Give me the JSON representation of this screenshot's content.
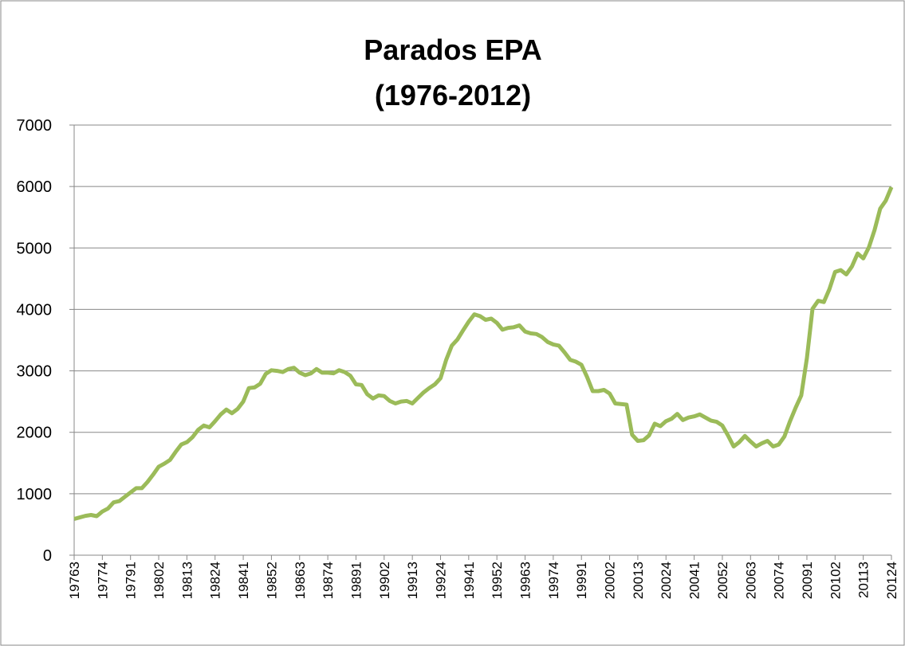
{
  "chart_data": {
    "type": "line",
    "title": [
      "Parados  EPA",
      "(1976-2012)"
    ],
    "categories": [
      "19763",
      null,
      null,
      null,
      null,
      "19774",
      null,
      null,
      null,
      null,
      "19791",
      null,
      null,
      null,
      null,
      "19802",
      null,
      null,
      null,
      null,
      "19813",
      null,
      null,
      null,
      null,
      "19824",
      null,
      null,
      null,
      null,
      "19841",
      null,
      null,
      null,
      null,
      "19852",
      null,
      null,
      null,
      null,
      "19863",
      null,
      null,
      null,
      null,
      "19874",
      null,
      null,
      null,
      null,
      "19891",
      null,
      null,
      null,
      null,
      "19902",
      null,
      null,
      null,
      null,
      "19913",
      null,
      null,
      null,
      null,
      "19924",
      null,
      null,
      null,
      null,
      "19941",
      null,
      null,
      null,
      null,
      "19952",
      null,
      null,
      null,
      null,
      "19963",
      null,
      null,
      null,
      null,
      "19974",
      null,
      null,
      null,
      null,
      "19991",
      null,
      null,
      null,
      null,
      "20002",
      null,
      null,
      null,
      null,
      "20013",
      null,
      null,
      null,
      null,
      "20024",
      null,
      null,
      null,
      null,
      "20041",
      null,
      null,
      null,
      null,
      "20052",
      null,
      null,
      null,
      null,
      "20063",
      null,
      null,
      null,
      null,
      "20074",
      null,
      null,
      null,
      null,
      "20091",
      null,
      null,
      null,
      null,
      "20102",
      null,
      null,
      null,
      null,
      "20113",
      null,
      null,
      null,
      null,
      "20124"
    ],
    "values": [
      590,
      615,
      640,
      655,
      635,
      710,
      760,
      860,
      880,
      950,
      1020,
      1090,
      1090,
      1190,
      1310,
      1440,
      1490,
      1550,
      1680,
      1800,
      1840,
      1920,
      2040,
      2110,
      2080,
      2180,
      2290,
      2370,
      2310,
      2380,
      2500,
      2720,
      2730,
      2790,
      2950,
      3010,
      3000,
      2980,
      3030,
      3050,
      2970,
      2930,
      2960,
      3030,
      2970,
      2970,
      2960,
      3010,
      2980,
      2920,
      2780,
      2770,
      2620,
      2550,
      2600,
      2590,
      2510,
      2470,
      2500,
      2510,
      2470,
      2560,
      2650,
      2720,
      2780,
      2880,
      3180,
      3410,
      3510,
      3660,
      3800,
      3920,
      3890,
      3830,
      3850,
      3780,
      3670,
      3700,
      3710,
      3740,
      3640,
      3610,
      3600,
      3550,
      3470,
      3430,
      3410,
      3300,
      3180,
      3150,
      3100,
      2900,
      2670,
      2670,
      2690,
      2630,
      2470,
      2460,
      2450,
      1960,
      1860,
      1870,
      1950,
      2140,
      2100,
      2180,
      2220,
      2300,
      2200,
      2240,
      2260,
      2290,
      2240,
      2190,
      2170,
      2110,
      1950,
      1770,
      1840,
      1940,
      1850,
      1770,
      1820,
      1860,
      1770,
      1800,
      1930,
      2180,
      2400,
      2600,
      3210,
      4010,
      4140,
      4120,
      4330,
      4610,
      4640,
      4570,
      4700,
      4910,
      4830,
      5010,
      5290,
      5640,
      5770,
      5990
    ],
    "color": "#9bbb59",
    "ylim": [
      0,
      7000
    ],
    "yticks": [
      0,
      1000,
      2000,
      3000,
      4000,
      5000,
      6000,
      7000
    ],
    "grid": true
  }
}
